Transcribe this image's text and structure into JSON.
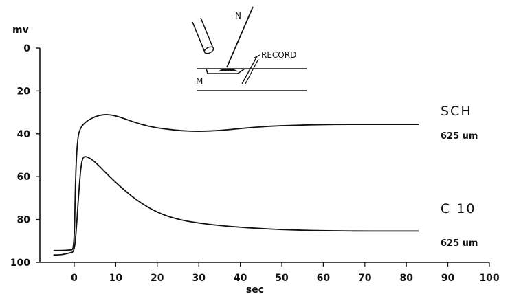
{
  "chart_data": {
    "type": "line",
    "ylabel": "mv",
    "xlabel": "sec",
    "xlim": [
      -5,
      100
    ],
    "ylim": [
      0,
      100
    ],
    "y_inverted": true,
    "x_ticks": [
      0,
      10,
      20,
      30,
      40,
      50,
      60,
      70,
      80,
      90,
      100
    ],
    "y_ticks": [
      0,
      20,
      40,
      60,
      80,
      100
    ],
    "grid": false,
    "series": [
      {
        "name": "SCH",
        "sublabel": "625 um",
        "x": [
          -5,
          -3,
          -1,
          0,
          0.3,
          0.8,
          1.5,
          3,
          5,
          7,
          9,
          11,
          14,
          18,
          22,
          26,
          30,
          35,
          40,
          45,
          50,
          55,
          60,
          65,
          70,
          75,
          83
        ],
        "y": [
          94.5,
          94.5,
          94.2,
          94,
          60,
          42,
          37,
          34,
          32,
          31,
          31.2,
          32.2,
          34.3,
          36.6,
          37.8,
          38.6,
          38.9,
          38.5,
          37.5,
          36.7,
          36.2,
          35.9,
          35.7,
          35.6,
          35.6,
          35.6,
          35.6
        ]
      },
      {
        "name": "C 10",
        "sublabel": "625 um",
        "x": [
          -5,
          -3,
          -1,
          0,
          0.5,
          1,
          1.5,
          2,
          3,
          5,
          8,
          11,
          15,
          20,
          25,
          30,
          35,
          40,
          45,
          50,
          55,
          60,
          65,
          70,
          75,
          83
        ],
        "y": [
          96.5,
          96.5,
          95.5,
          95,
          85,
          70,
          57,
          51,
          50.5,
          53,
          59,
          64.5,
          71,
          76.8,
          80,
          81.7,
          82.8,
          83.6,
          84.2,
          84.7,
          85,
          85.2,
          85.3,
          85.4,
          85.4,
          85.4
        ]
      }
    ]
  },
  "inset": {
    "label_n": "N",
    "label_m": "M",
    "label_record": "RECORD"
  }
}
